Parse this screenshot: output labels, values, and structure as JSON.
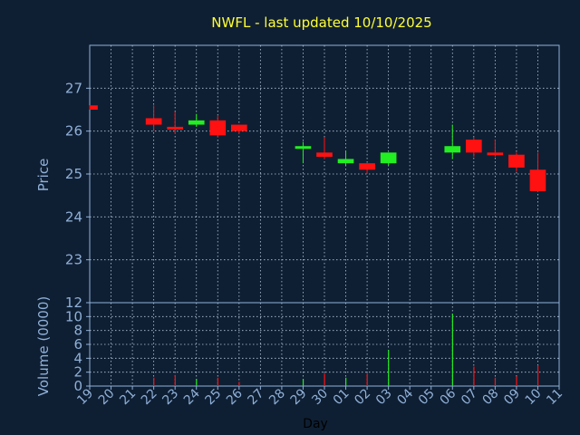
{
  "colors": {
    "background": "#0f1f33",
    "axis": "#8fb0d8",
    "grid": "#b8c8dc",
    "title": "#ffff33",
    "up": "#22ee22",
    "down": "#ff1111",
    "xlabel": "#000000"
  },
  "chart_data": {
    "type": "candlestick",
    "title": "NWFL - last updated 10/10/2025",
    "xlabel": "Day",
    "ylabel": "Price",
    "volume_label": "Volume (0000)",
    "grid": true,
    "price_ylim": [
      22,
      28
    ],
    "price_ticks": [
      23,
      24,
      25,
      26,
      27
    ],
    "volume_ylim": [
      0,
      12
    ],
    "volume_ticks": [
      0,
      2,
      4,
      6,
      8,
      10,
      12
    ],
    "x_ticks": [
      "19",
      "20",
      "21",
      "22",
      "23",
      "24",
      "25",
      "26",
      "27",
      "28",
      "29",
      "30",
      "01",
      "02",
      "03",
      "04",
      "05",
      "06",
      "07",
      "08",
      "09",
      "10",
      "11"
    ],
    "days": [
      {
        "day": "19",
        "open": 26.6,
        "high": 26.6,
        "low": 26.5,
        "close": 26.5,
        "volume": 0.0
      },
      {
        "day": "22",
        "open": 26.3,
        "high": 26.6,
        "low": 26.0,
        "close": 26.15,
        "volume": 1.2
      },
      {
        "day": "23",
        "open": 26.1,
        "high": 26.45,
        "low": 25.95,
        "close": 26.05,
        "volume": 1.6
      },
      {
        "day": "24",
        "open": 26.15,
        "high": 26.4,
        "low": 26.1,
        "close": 26.25,
        "volume": 1.0
      },
      {
        "day": "25",
        "open": 26.25,
        "high": 26.35,
        "low": 25.85,
        "close": 25.9,
        "volume": 1.2
      },
      {
        "day": "26",
        "open": 26.15,
        "high": 26.15,
        "low": 25.95,
        "close": 26.0,
        "volume": 0.6
      },
      {
        "day": "29",
        "open": 25.6,
        "high": 25.75,
        "low": 25.25,
        "close": 25.65,
        "volume": 1.0
      },
      {
        "day": "30",
        "open": 25.5,
        "high": 25.85,
        "low": 25.35,
        "close": 25.4,
        "volume": 1.8
      },
      {
        "day": "01",
        "open": 25.25,
        "high": 25.55,
        "low": 25.2,
        "close": 25.35,
        "volume": 1.2
      },
      {
        "day": "02",
        "open": 25.25,
        "high": 25.25,
        "low": 25.0,
        "close": 25.1,
        "volume": 1.8
      },
      {
        "day": "03",
        "open": 25.25,
        "high": 25.5,
        "low": 25.2,
        "close": 25.5,
        "volume": 5.2
      },
      {
        "day": "06",
        "open": 25.5,
        "high": 26.15,
        "low": 25.35,
        "close": 25.65,
        "volume": 10.4
      },
      {
        "day": "07",
        "open": 25.8,
        "high": 25.85,
        "low": 25.4,
        "close": 25.5,
        "volume": 2.8
      },
      {
        "day": "08",
        "open": 25.5,
        "high": 25.8,
        "low": 25.4,
        "close": 25.45,
        "volume": 1.2
      },
      {
        "day": "09",
        "open": 25.45,
        "high": 25.5,
        "low": 25.05,
        "close": 25.15,
        "volume": 1.4
      },
      {
        "day": "10",
        "open": 25.1,
        "high": 25.5,
        "low": 24.6,
        "close": 24.6,
        "volume": 3.0
      }
    ]
  }
}
